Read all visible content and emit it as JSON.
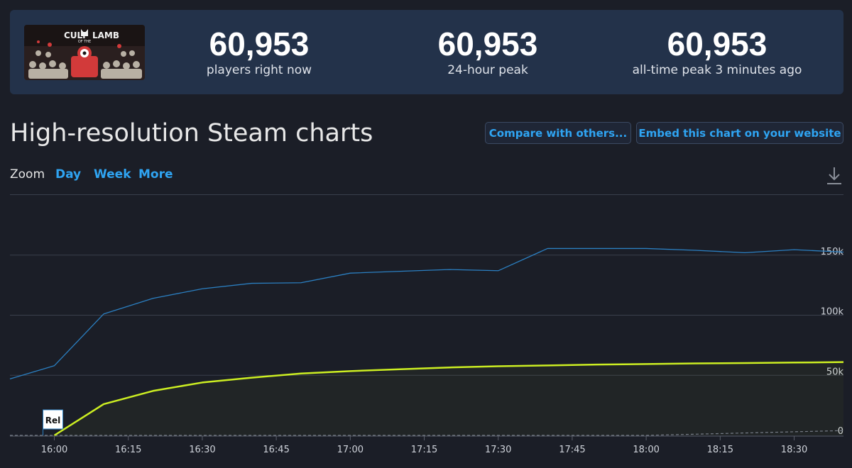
{
  "stats": [
    {
      "value": "60,953",
      "label": "players right now"
    },
    {
      "value": "60,953",
      "label": "24-hour peak"
    },
    {
      "value": "60,953",
      "label": "all-time peak 3 minutes ago"
    }
  ],
  "game": {
    "logo_text_top": "CULT",
    "logo_text_bottom": "LAMB",
    "logo_text_mid": "OF THE"
  },
  "section_title": "High-resolution Steam charts",
  "buttons": {
    "compare": "Compare with others...",
    "embed": "Embed this chart on your website"
  },
  "zoom": {
    "label": "Zoom",
    "options": [
      "Day",
      "Week",
      "More"
    ]
  },
  "colors": {
    "players": "#ccee22",
    "twitch": "#2b7fc1",
    "accent": "#2fa4f2",
    "background": "#1b1e27"
  },
  "chart_data": {
    "type": "line",
    "x_ticks": [
      "16:00",
      "16:15",
      "16:30",
      "16:45",
      "17:00",
      "17:15",
      "17:30",
      "17:45",
      "18:00",
      "18:15",
      "18:30"
    ],
    "y_ticks": [
      "0",
      "50k",
      "100k",
      "150k"
    ],
    "ylim": [
      0,
      200000
    ],
    "xlim": [
      "15:51",
      "18:40"
    ],
    "grid": true,
    "flag_label": "Rel",
    "flag_x": "16:00",
    "series": [
      {
        "color": "#ccee22",
        "points": [
          [
            "16:00",
            0
          ],
          [
            "16:10",
            26000
          ],
          [
            "16:20",
            37000
          ],
          [
            "16:30",
            44000
          ],
          [
            "16:40",
            48000
          ],
          [
            "16:50",
            51500
          ],
          [
            "17:00",
            53500
          ],
          [
            "17:10",
            55000
          ],
          [
            "17:20",
            56500
          ],
          [
            "17:30",
            57500
          ],
          [
            "17:40",
            58200
          ],
          [
            "17:50",
            58900
          ],
          [
            "18:00",
            59400
          ],
          [
            "18:10",
            59900
          ],
          [
            "18:20",
            60200
          ],
          [
            "18:30",
            60600
          ],
          [
            "18:40",
            60953
          ]
        ]
      },
      {
        "color": "#2b7fc1",
        "points": [
          [
            "15:51",
            47000
          ],
          [
            "16:00",
            58000
          ],
          [
            "16:10",
            101000
          ],
          [
            "16:20",
            114000
          ],
          [
            "16:30",
            122000
          ],
          [
            "16:40",
            126500
          ],
          [
            "16:50",
            127000
          ],
          [
            "17:00",
            135000
          ],
          [
            "17:10",
            136500
          ],
          [
            "17:20",
            138000
          ],
          [
            "17:30",
            137000
          ],
          [
            "17:40",
            155500
          ],
          [
            "17:50",
            155500
          ],
          [
            "18:00",
            155500
          ],
          [
            "18:10",
            154000
          ],
          [
            "18:20",
            152000
          ],
          [
            "18:30",
            154500
          ],
          [
            "18:40",
            152500
          ]
        ]
      },
      {
        "color": "#777d88",
        "dashed": true,
        "points": [
          [
            "15:51",
            0
          ],
          [
            "18:00",
            0
          ],
          [
            "18:40",
            4000
          ]
        ]
      }
    ]
  }
}
